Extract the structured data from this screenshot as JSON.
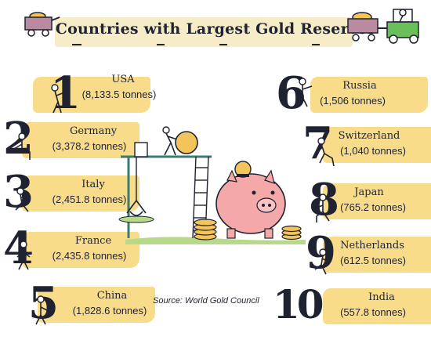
{
  "header": {
    "title": "Countries with Largest Gold Reserves",
    "decor_icons": [
      "gold-cart-icon",
      "forklift-gold-cart-icon"
    ]
  },
  "ranking": [
    {
      "rank": "1",
      "country": "USA",
      "reserve": "(8,133.5 tonnes)"
    },
    {
      "rank": "2",
      "country": "Germany",
      "reserve": "(3,378.2 tonnes)"
    },
    {
      "rank": "3",
      "country": "Italy",
      "reserve": "(2,451.8 tonnes)"
    },
    {
      "rank": "4",
      "country": "France",
      "reserve": "(2,435.8 tonnes)"
    },
    {
      "rank": "5",
      "country": "China",
      "reserve": "(1,828.6 tonnes)"
    },
    {
      "rank": "6",
      "country": "Russia",
      "reserve": "(1,506 tonnes)"
    },
    {
      "rank": "7",
      "country": "Switzerland",
      "reserve": "(1,040 tonnes)"
    },
    {
      "rank": "8",
      "country": "Japan",
      "reserve": "(765.2 tonnes)"
    },
    {
      "rank": "9",
      "country": "Netherlands",
      "reserve": "(612.5 tonnes)"
    },
    {
      "rank": "10",
      "country": "India",
      "reserve": "(557.8 tonnes)"
    }
  ],
  "source": "Source: World Gold Council",
  "colors": {
    "highlight": "#f8dc8a",
    "title_band": "#f6edc8",
    "ink": "#1f2230",
    "piggy": "#f4a9a8",
    "gold": "#f2c45a",
    "crane": "#3a7d6e",
    "grass": "#b6d98a"
  }
}
